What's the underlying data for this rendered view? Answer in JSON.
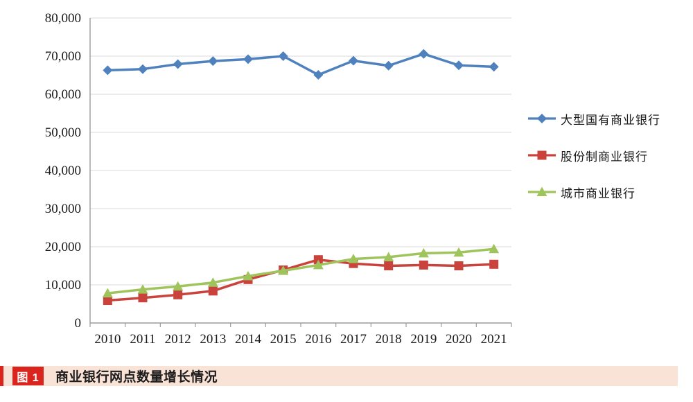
{
  "caption": {
    "badge_label": "图 1",
    "title": "商业银行网点数量增长情况",
    "bar_color": "#f9e2d6",
    "badge_color": "#d9251d",
    "stripe_color": "#d9251d"
  },
  "chart_data": {
    "type": "line",
    "title": "",
    "xlabel": "",
    "ylabel": "",
    "categories": [
      "2010",
      "2011",
      "2012",
      "2013",
      "2014",
      "2015",
      "2016",
      "2017",
      "2018",
      "2019",
      "2020",
      "2021"
    ],
    "series": [
      {
        "name": "大型国有商业银行",
        "marker": "diamond",
        "color": "#4e81bd",
        "values": [
          66300,
          66600,
          67900,
          68700,
          69200,
          70000,
          65100,
          68800,
          67500,
          70600,
          67600,
          67200
        ]
      },
      {
        "name": "股份制商业银行",
        "marker": "square",
        "color": "#c9433c",
        "values": [
          5900,
          6600,
          7400,
          8400,
          11400,
          13900,
          16600,
          15600,
          15000,
          15200,
          15000,
          15400
        ]
      },
      {
        "name": "城市商业银行",
        "marker": "triangle",
        "color": "#9fc45c",
        "values": [
          7800,
          8800,
          9600,
          10600,
          12300,
          13700,
          15200,
          16800,
          17300,
          18300,
          18500,
          19400
        ]
      }
    ],
    "ylim": [
      0,
      80000
    ],
    "ytick_step": 10000,
    "ytick_labels": [
      "0",
      "10,000",
      "20,000",
      "30,000",
      "40,000",
      "50,000",
      "60,000",
      "70,000",
      "80,000"
    ],
    "grid": true,
    "legend_position": "right",
    "axis_color": "#9b9b9b",
    "grid_color": "#d9d9d9",
    "tick_label_color": "#1a1a1a"
  }
}
